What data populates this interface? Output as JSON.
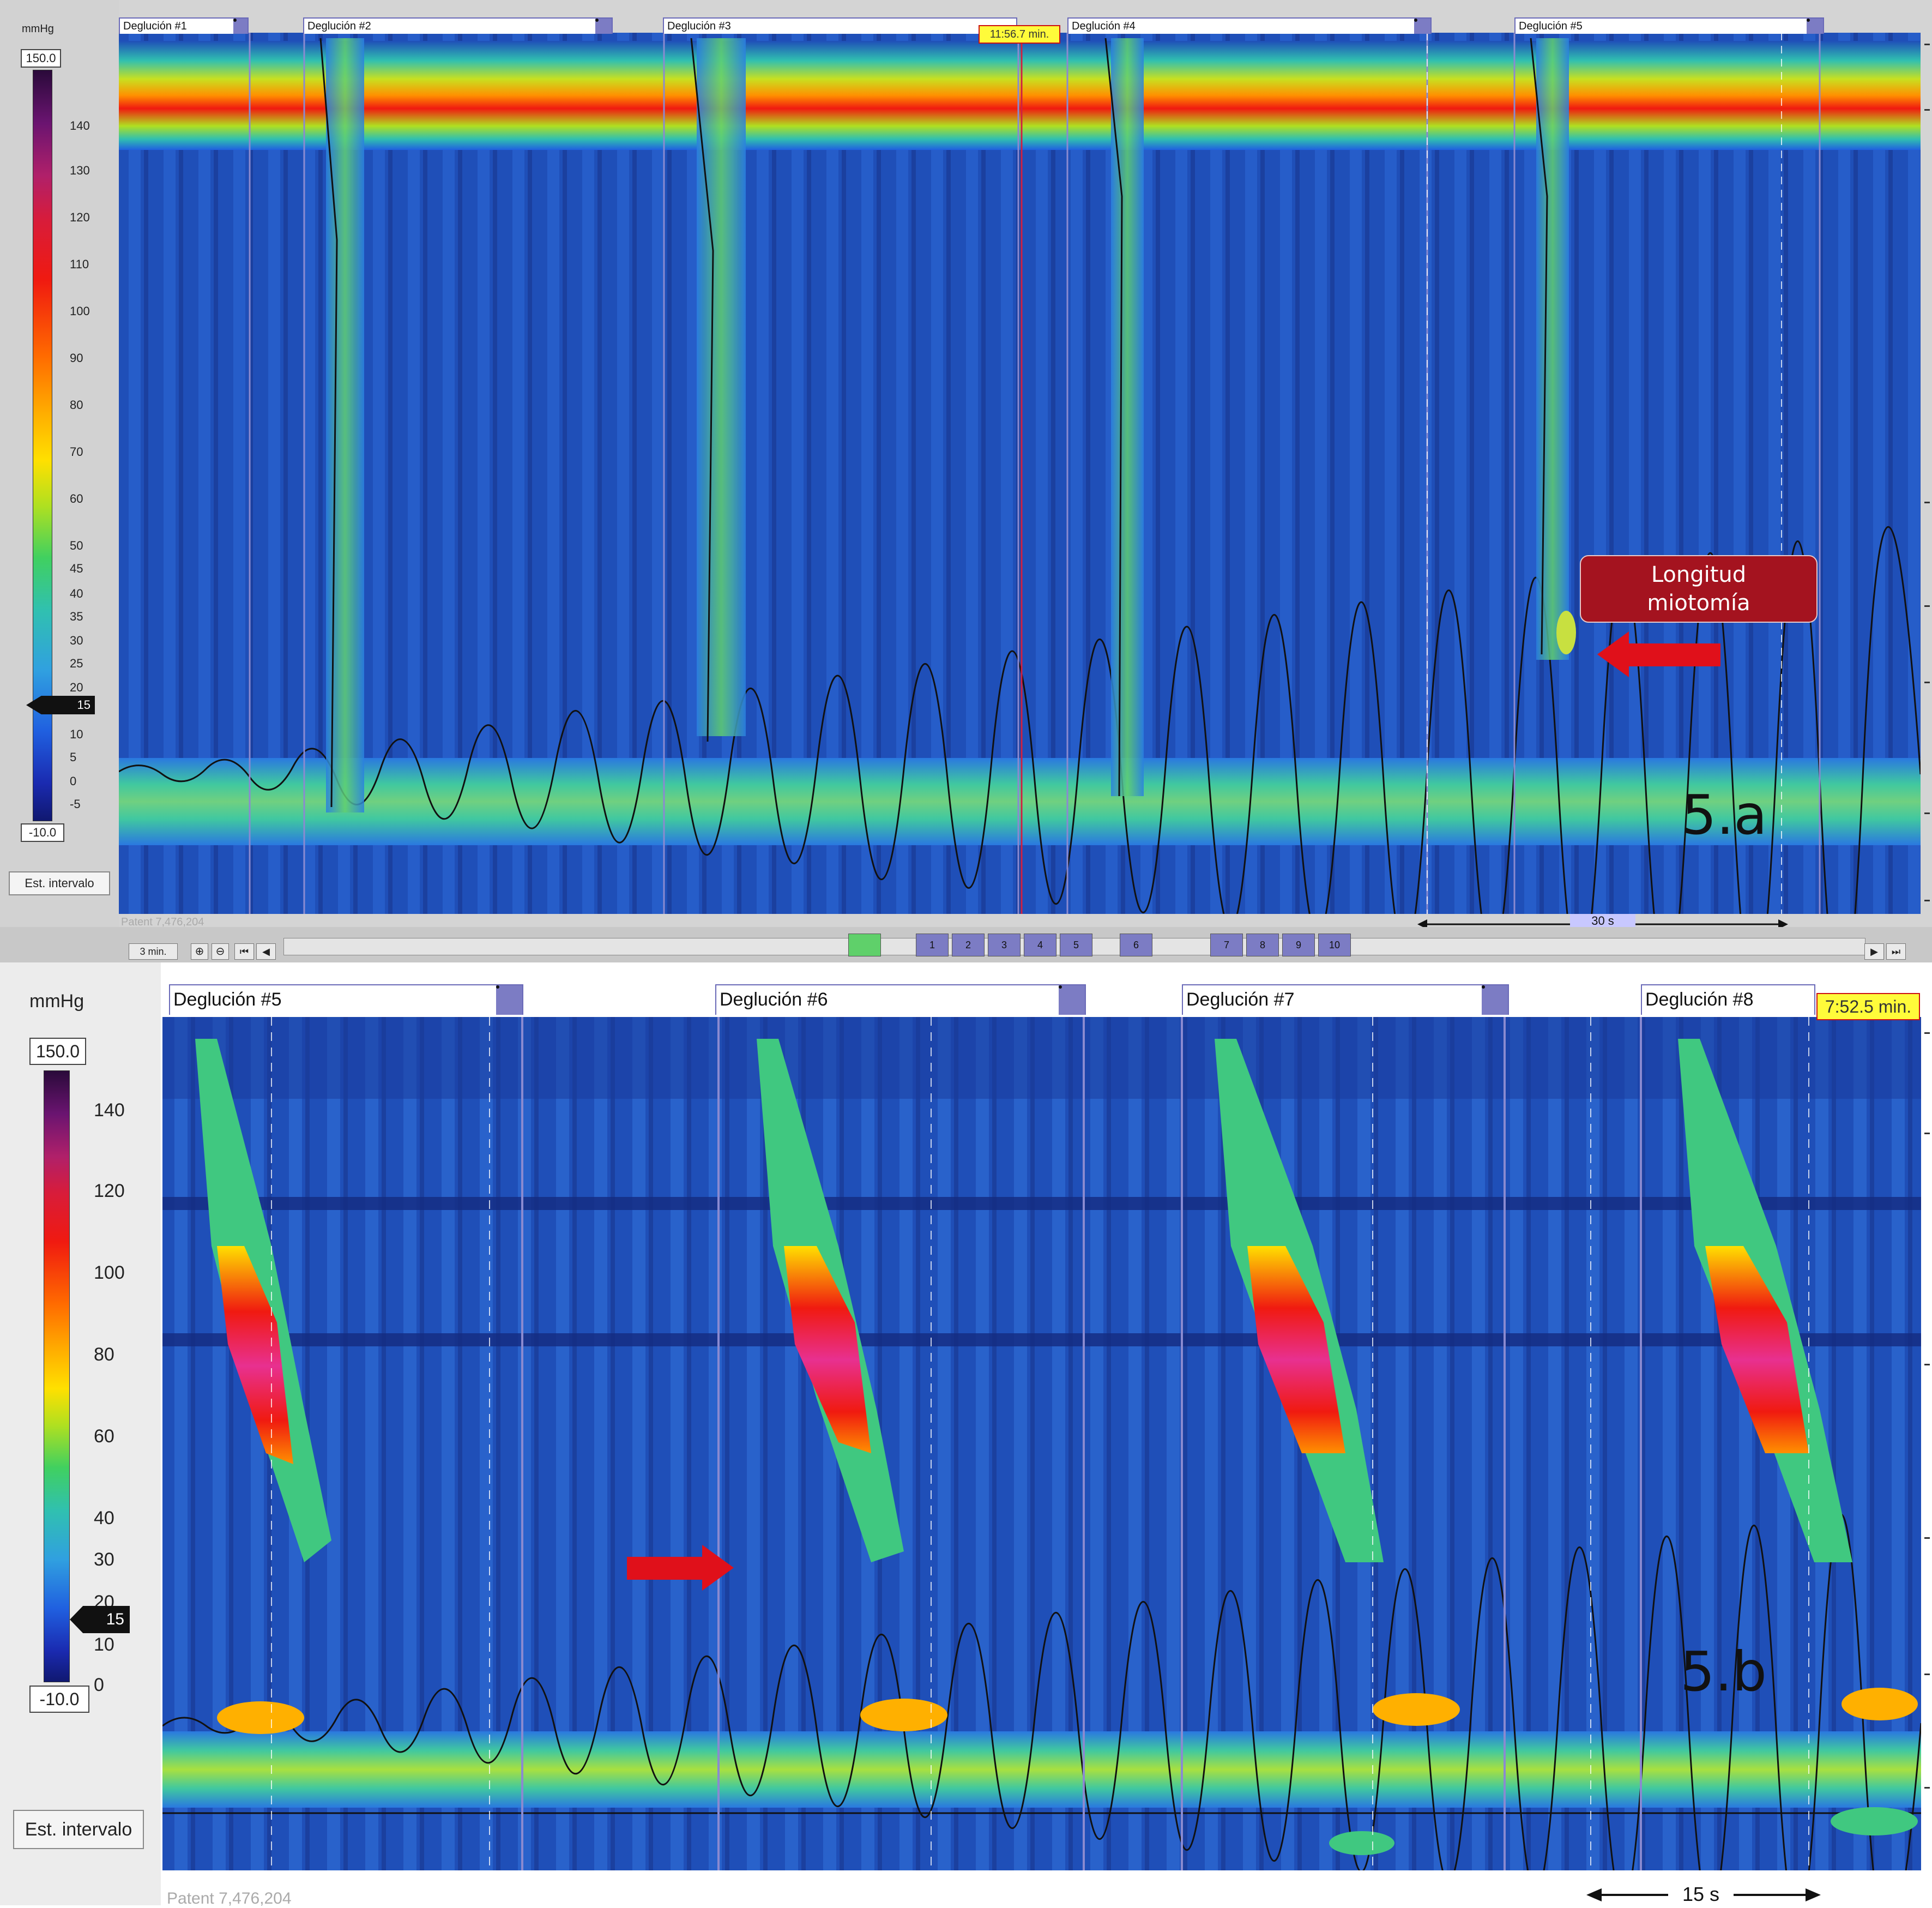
{
  "panel_a": {
    "unit_label": "mmHg",
    "max_value": "150.0",
    "min_value": "-10.0",
    "ticks": [
      "140",
      "130",
      "120",
      "110",
      "100",
      "90",
      "80",
      "70",
      "60",
      "50",
      "45",
      "40",
      "35",
      "30",
      "25",
      "20",
      "10",
      "5",
      "0",
      "-5"
    ],
    "threshold_marker": "15",
    "interval_button": "Est. intervalo",
    "swallow_labels": [
      "Deglución #1",
      "Deglución #2",
      "Deglución #3",
      "Deglución #4",
      "Deglución #5"
    ],
    "time_badge": "11:56.7 min.",
    "callout_line1": "Longitud",
    "callout_line2": "miotomía",
    "panel_label": "5.a",
    "scale_label": "30 s",
    "patent_text": "Patent 7,476,204",
    "toolbar": {
      "zoom_label": "3 min.",
      "track_numbers": [
        "1",
        "2",
        "3",
        "4",
        "5",
        "6",
        "7",
        "8",
        "9",
        "10"
      ]
    }
  },
  "panel_b": {
    "unit_label": "mmHg",
    "max_value": "150.0",
    "min_value": "-10.0",
    "ticks": [
      "140",
      "120",
      "100",
      "80",
      "60",
      "40",
      "30",
      "20",
      "10",
      "0"
    ],
    "threshold_marker": "15",
    "interval_button": "Est. intervalo",
    "swallow_labels": [
      "Deglución #5",
      "Deglución #6",
      "Deglución #7",
      "Deglución #8"
    ],
    "time_badge": "7:52.5 min.",
    "panel_label": "5.b",
    "scale_label": "15 s",
    "patent_text": "Patent 7,476,204"
  },
  "colors": {
    "background_blue": "#1f4fb8",
    "arrow_red": "#e0101a",
    "callout_red": "#a4131f",
    "swallow_box": "#6a6ab8",
    "badge_yellow": "#fffb3a"
  }
}
